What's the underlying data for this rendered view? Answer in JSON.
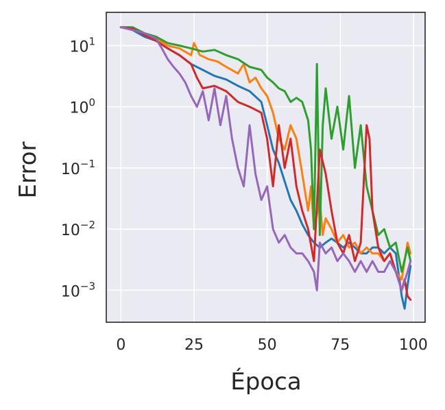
{
  "chart_data": {
    "type": "line",
    "title": "",
    "xlabel": "Época",
    "ylabel": "Error",
    "xlim": [
      -5,
      104
    ],
    "ylim": [
      0.0003,
      35
    ],
    "yscale": "log",
    "grid": true,
    "legend": "none",
    "background": "#eaeaf2",
    "x_ticks": [
      0,
      25,
      50,
      75,
      100
    ],
    "x_tick_labels": [
      "0",
      "25",
      "50",
      "75",
      "100"
    ],
    "y_ticks": [
      {
        "value": 10,
        "base": "10",
        "exp": "1"
      },
      {
        "value": 1,
        "base": "10",
        "exp": "0"
      },
      {
        "value": 0.1,
        "base": "10",
        "exp": "−1"
      },
      {
        "value": 0.01,
        "base": "10",
        "exp": "−2"
      },
      {
        "value": 0.001,
        "base": "10",
        "exp": "−3"
      }
    ],
    "series": [
      {
        "color": "#1f77b4",
        "points": [
          [
            0,
            20
          ],
          [
            4,
            18
          ],
          [
            8,
            14
          ],
          [
            12,
            12
          ],
          [
            16,
            9
          ],
          [
            20,
            7
          ],
          [
            24,
            5
          ],
          [
            28,
            4
          ],
          [
            32,
            3.2
          ],
          [
            36,
            2.8
          ],
          [
            40,
            2.2
          ],
          [
            44,
            1.8
          ],
          [
            48,
            1.2
          ],
          [
            50,
            0.5
          ],
          [
            52,
            0.2
          ],
          [
            54,
            0.12
          ],
          [
            56,
            0.06
          ],
          [
            58,
            0.03
          ],
          [
            60,
            0.02
          ],
          [
            62,
            0.012
          ],
          [
            64,
            0.008
          ],
          [
            66,
            0.006
          ],
          [
            68,
            0.005
          ],
          [
            70,
            0.006
          ],
          [
            72,
            0.007
          ],
          [
            74,
            0.006
          ],
          [
            76,
            0.005
          ],
          [
            78,
            0.006
          ],
          [
            80,
            0.005
          ],
          [
            82,
            0.004
          ],
          [
            84,
            0.004
          ],
          [
            86,
            0.005
          ],
          [
            88,
            0.005
          ],
          [
            90,
            0.004
          ],
          [
            92,
            0.005
          ],
          [
            94,
            0.004
          ],
          [
            96,
            0.0008
          ],
          [
            97,
            0.0005
          ],
          [
            98,
            0.0012
          ],
          [
            99,
            0.0025
          ]
        ]
      },
      {
        "color": "#ff7f0e",
        "points": [
          [
            0,
            20
          ],
          [
            4,
            19
          ],
          [
            8,
            15
          ],
          [
            12,
            13
          ],
          [
            16,
            10
          ],
          [
            20,
            9
          ],
          [
            24,
            7
          ],
          [
            25,
            11
          ],
          [
            27,
            7
          ],
          [
            30,
            6
          ],
          [
            33,
            5.5
          ],
          [
            36,
            4.5
          ],
          [
            40,
            3.5
          ],
          [
            42,
            5
          ],
          [
            44,
            2.5
          ],
          [
            46,
            3
          ],
          [
            48,
            2
          ],
          [
            50,
            1.5
          ],
          [
            52,
            0.8
          ],
          [
            54,
            0.3
          ],
          [
            56,
            0.2
          ],
          [
            58,
            0.5
          ],
          [
            60,
            0.3
          ],
          [
            62,
            0.08
          ],
          [
            64,
            0.02
          ],
          [
            65,
            0.05
          ],
          [
            66,
            0.01
          ],
          [
            68,
            0.03
          ],
          [
            69,
            0.008
          ],
          [
            70,
            0.015
          ],
          [
            72,
            0.01
          ],
          [
            74,
            0.006
          ],
          [
            76,
            0.008
          ],
          [
            78,
            0.005
          ],
          [
            80,
            0.006
          ],
          [
            82,
            0.004
          ],
          [
            84,
            0.005
          ],
          [
            86,
            0.004
          ],
          [
            88,
            0.004
          ],
          [
            90,
            0.003
          ],
          [
            92,
            0.004
          ],
          [
            94,
            0.002
          ],
          [
            96,
            0.0015
          ],
          [
            98,
            0.006
          ],
          [
            99,
            0.004
          ]
        ]
      },
      {
        "color": "#2ca02c",
        "points": [
          [
            0,
            20
          ],
          [
            4,
            20
          ],
          [
            8,
            16
          ],
          [
            12,
            14
          ],
          [
            16,
            11
          ],
          [
            20,
            10
          ],
          [
            24,
            9
          ],
          [
            28,
            8
          ],
          [
            32,
            8.5
          ],
          [
            36,
            7
          ],
          [
            40,
            6
          ],
          [
            44,
            4.5
          ],
          [
            48,
            4
          ],
          [
            50,
            3
          ],
          [
            52,
            2.5
          ],
          [
            54,
            2
          ],
          [
            56,
            1.8
          ],
          [
            58,
            1.2
          ],
          [
            60,
            1.4
          ],
          [
            62,
            1.2
          ],
          [
            64,
            0.6
          ],
          [
            65,
            0.2
          ],
          [
            66,
            0.01
          ],
          [
            67,
            5
          ],
          [
            68,
            0.008
          ],
          [
            69,
            0.5
          ],
          [
            70,
            2
          ],
          [
            72,
            0.3
          ],
          [
            74,
            1
          ],
          [
            76,
            0.2
          ],
          [
            78,
            1.5
          ],
          [
            80,
            0.1
          ],
          [
            82,
            0.5
          ],
          [
            84,
            0.05
          ],
          [
            86,
            0.02
          ],
          [
            88,
            0.008
          ],
          [
            90,
            0.01
          ],
          [
            92,
            0.005
          ],
          [
            94,
            0.006
          ],
          [
            96,
            0.002
          ],
          [
            98,
            0.005
          ],
          [
            99,
            0.003
          ]
        ]
      },
      {
        "color": "#d62728",
        "points": [
          [
            0,
            20
          ],
          [
            4,
            19
          ],
          [
            8,
            15
          ],
          [
            12,
            12
          ],
          [
            16,
            9
          ],
          [
            20,
            7
          ],
          [
            24,
            5
          ],
          [
            26,
            3
          ],
          [
            28,
            2
          ],
          [
            32,
            2.2
          ],
          [
            36,
            1.8
          ],
          [
            40,
            1.2
          ],
          [
            44,
            1
          ],
          [
            48,
            0.8
          ],
          [
            50,
            0.3
          ],
          [
            52,
            0.05
          ],
          [
            54,
            0.5
          ],
          [
            56,
            0.1
          ],
          [
            58,
            0.3
          ],
          [
            60,
            0.05
          ],
          [
            62,
            0.02
          ],
          [
            64,
            0.01
          ],
          [
            66,
            0.003
          ],
          [
            68,
            0.2
          ],
          [
            70,
            0.08
          ],
          [
            72,
            0.02
          ],
          [
            74,
            0.006
          ],
          [
            76,
            0.004
          ],
          [
            78,
            0.008
          ],
          [
            80,
            0.003
          ],
          [
            82,
            0.006
          ],
          [
            84,
            0.5
          ],
          [
            85,
            0.3
          ],
          [
            86,
            0.02
          ],
          [
            88,
            0.005
          ],
          [
            90,
            0.003
          ],
          [
            92,
            0.004
          ],
          [
            94,
            0.002
          ],
          [
            96,
            0.001
          ],
          [
            97,
            0.0015
          ],
          [
            98,
            0.0008
          ],
          [
            99,
            0.0007
          ]
        ]
      },
      {
        "color": "#9467bd",
        "points": [
          [
            0,
            20
          ],
          [
            4,
            18
          ],
          [
            8,
            16
          ],
          [
            12,
            13
          ],
          [
            14,
            9
          ],
          [
            16,
            6
          ],
          [
            18,
            4.5
          ],
          [
            20,
            3.5
          ],
          [
            22,
            2.5
          ],
          [
            24,
            1.5
          ],
          [
            26,
            1
          ],
          [
            28,
            1.8
          ],
          [
            30,
            0.6
          ],
          [
            32,
            2
          ],
          [
            34,
            0.5
          ],
          [
            36,
            1.5
          ],
          [
            38,
            0.3
          ],
          [
            40,
            0.1
          ],
          [
            42,
            0.05
          ],
          [
            44,
            0.5
          ],
          [
            46,
            0.08
          ],
          [
            48,
            0.03
          ],
          [
            50,
            0.05
          ],
          [
            52,
            0.01
          ],
          [
            54,
            0.006
          ],
          [
            56,
            0.008
          ],
          [
            58,
            0.005
          ],
          [
            60,
            0.004
          ],
          [
            62,
            0.004
          ],
          [
            64,
            0.003
          ],
          [
            66,
            0.002
          ],
          [
            67,
            0.001
          ],
          [
            68,
            0.006
          ],
          [
            70,
            0.004
          ],
          [
            72,
            0.005
          ],
          [
            74,
            0.003
          ],
          [
            76,
            0.004
          ],
          [
            78,
            0.003
          ],
          [
            80,
            0.002
          ],
          [
            82,
            0.003
          ],
          [
            84,
            0.002
          ],
          [
            86,
            0.003
          ],
          [
            88,
            0.002
          ],
          [
            90,
            0.002
          ],
          [
            92,
            0.003
          ],
          [
            94,
            0.002
          ],
          [
            96,
            0.001
          ],
          [
            98,
            0.002
          ],
          [
            99,
            0.003
          ]
        ]
      }
    ]
  }
}
